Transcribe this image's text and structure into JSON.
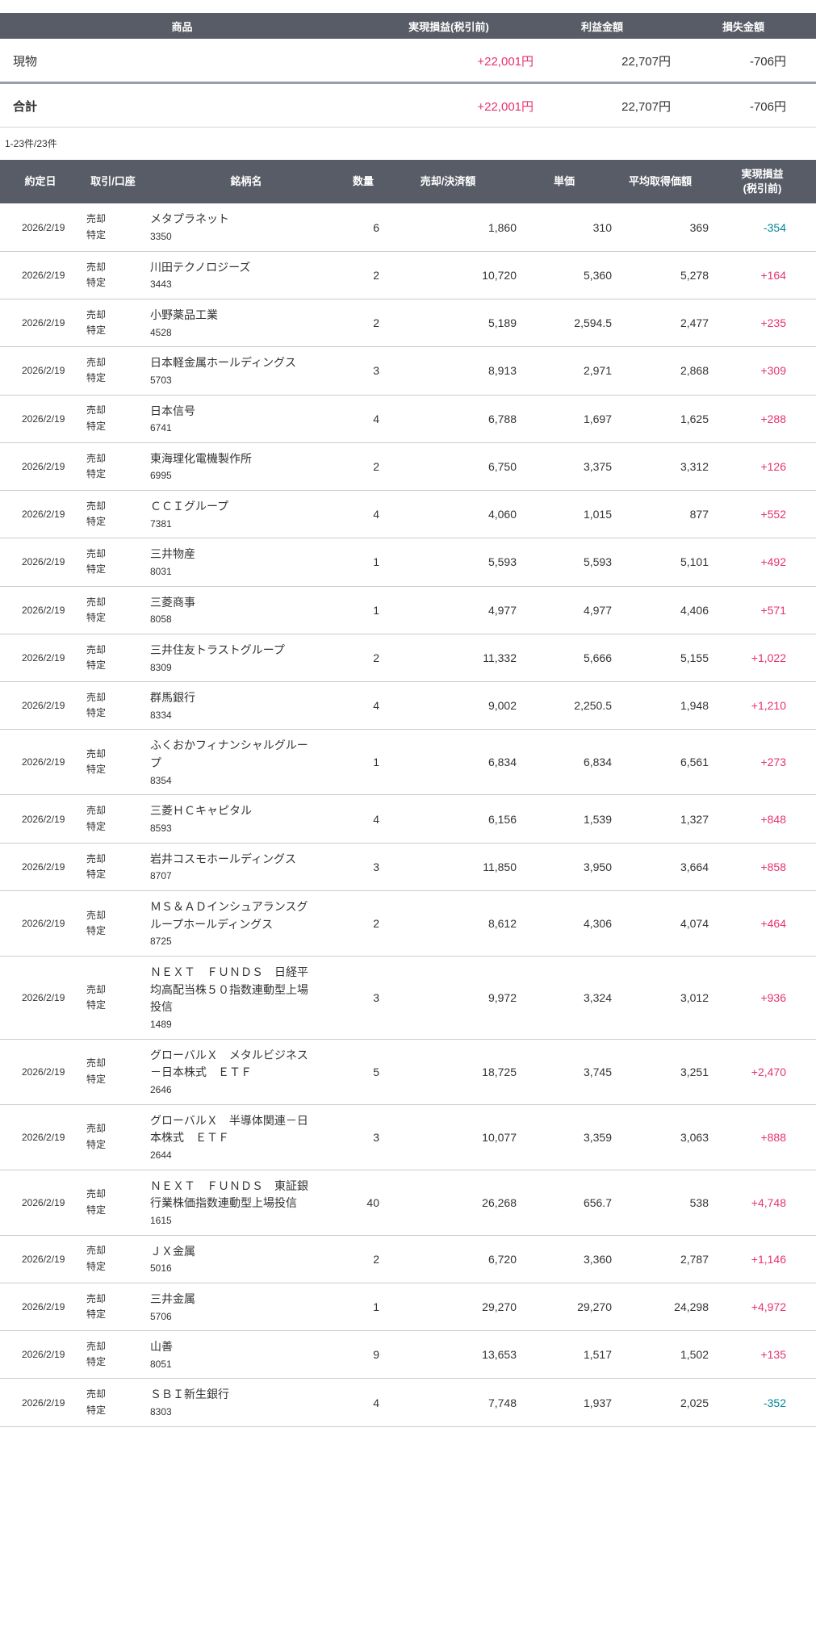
{
  "colors": {
    "header_bg": "#585c66",
    "positive_pl": "#e7336b",
    "negative_pl": "#00879b",
    "row_border": "#c9ccd0",
    "summary_thick_divider": "#9aa0aa",
    "text": "#333333"
  },
  "summary": {
    "columns": [
      "商品",
      "実現損益(税引前)",
      "利益金額",
      "損失金額"
    ],
    "rows": [
      {
        "product": "現物",
        "realized_pl": "+22,001円",
        "profit": "22,707円",
        "loss": "-706円"
      },
      {
        "product": "合計",
        "realized_pl": "+22,001円",
        "profit": "22,707円",
        "loss": "-706円"
      }
    ]
  },
  "pagination": {
    "label": "1-23件/23件"
  },
  "trades": {
    "columns": [
      "約定日",
      "取引/口座",
      "銘柄名",
      "数量",
      "売却/決済額",
      "単価",
      "平均取得価額",
      "実現損益(税引前)"
    ],
    "last_column_line1": "実現損益",
    "last_column_line2": "(税引前)",
    "rows": [
      {
        "date": "2026/2/19",
        "trade": "売却",
        "account": "特定",
        "name": "メタプラネット",
        "code": "3350",
        "qty": "6",
        "amount": "1,860",
        "price": "310",
        "avg_cost": "369",
        "pl": "-354"
      },
      {
        "date": "2026/2/19",
        "trade": "売却",
        "account": "特定",
        "name": "川田テクノロジーズ",
        "code": "3443",
        "qty": "2",
        "amount": "10,720",
        "price": "5,360",
        "avg_cost": "5,278",
        "pl": "+164"
      },
      {
        "date": "2026/2/19",
        "trade": "売却",
        "account": "特定",
        "name": "小野薬品工業",
        "code": "4528",
        "qty": "2",
        "amount": "5,189",
        "price": "2,594.5",
        "avg_cost": "2,477",
        "pl": "+235"
      },
      {
        "date": "2026/2/19",
        "trade": "売却",
        "account": "特定",
        "name": "日本軽金属ホールディングス",
        "code": "5703",
        "qty": "3",
        "amount": "8,913",
        "price": "2,971",
        "avg_cost": "2,868",
        "pl": "+309"
      },
      {
        "date": "2026/2/19",
        "trade": "売却",
        "account": "特定",
        "name": "日本信号",
        "code": "6741",
        "qty": "4",
        "amount": "6,788",
        "price": "1,697",
        "avg_cost": "1,625",
        "pl": "+288"
      },
      {
        "date": "2026/2/19",
        "trade": "売却",
        "account": "特定",
        "name": "東海理化電機製作所",
        "code": "6995",
        "qty": "2",
        "amount": "6,750",
        "price": "3,375",
        "avg_cost": "3,312",
        "pl": "+126"
      },
      {
        "date": "2026/2/19",
        "trade": "売却",
        "account": "特定",
        "name": "ＣＣＩグループ",
        "code": "7381",
        "qty": "4",
        "amount": "4,060",
        "price": "1,015",
        "avg_cost": "877",
        "pl": "+552"
      },
      {
        "date": "2026/2/19",
        "trade": "売却",
        "account": "特定",
        "name": "三井物産",
        "code": "8031",
        "qty": "1",
        "amount": "5,593",
        "price": "5,593",
        "avg_cost": "5,101",
        "pl": "+492"
      },
      {
        "date": "2026/2/19",
        "trade": "売却",
        "account": "特定",
        "name": "三菱商事",
        "code": "8058",
        "qty": "1",
        "amount": "4,977",
        "price": "4,977",
        "avg_cost": "4,406",
        "pl": "+571"
      },
      {
        "date": "2026/2/19",
        "trade": "売却",
        "account": "特定",
        "name": "三井住友トラストグループ",
        "code": "8309",
        "qty": "2",
        "amount": "11,332",
        "price": "5,666",
        "avg_cost": "5,155",
        "pl": "+1,022"
      },
      {
        "date": "2026/2/19",
        "trade": "売却",
        "account": "特定",
        "name": "群馬銀行",
        "code": "8334",
        "qty": "4",
        "amount": "9,002",
        "price": "2,250.5",
        "avg_cost": "1,948",
        "pl": "+1,210"
      },
      {
        "date": "2026/2/19",
        "trade": "売却",
        "account": "特定",
        "name": "ふくおかフィナンシャルグループ",
        "code": "8354",
        "qty": "1",
        "amount": "6,834",
        "price": "6,834",
        "avg_cost": "6,561",
        "pl": "+273"
      },
      {
        "date": "2026/2/19",
        "trade": "売却",
        "account": "特定",
        "name": "三菱ＨＣキャピタル",
        "code": "8593",
        "qty": "4",
        "amount": "6,156",
        "price": "1,539",
        "avg_cost": "1,327",
        "pl": "+848"
      },
      {
        "date": "2026/2/19",
        "trade": "売却",
        "account": "特定",
        "name": "岩井コスモホールディングス",
        "code": "8707",
        "qty": "3",
        "amount": "11,850",
        "price": "3,950",
        "avg_cost": "3,664",
        "pl": "+858"
      },
      {
        "date": "2026/2/19",
        "trade": "売却",
        "account": "特定",
        "name": "ＭＳ＆ＡＤインシュアランスグループホールディングス",
        "code": "8725",
        "qty": "2",
        "amount": "8,612",
        "price": "4,306",
        "avg_cost": "4,074",
        "pl": "+464"
      },
      {
        "date": "2026/2/19",
        "trade": "売却",
        "account": "特定",
        "name": "ＮＥＸＴ　ＦＵＮＤＳ　日経平均高配当株５０指数連動型上場投信",
        "code": "1489",
        "qty": "3",
        "amount": "9,972",
        "price": "3,324",
        "avg_cost": "3,012",
        "pl": "+936"
      },
      {
        "date": "2026/2/19",
        "trade": "売却",
        "account": "特定",
        "name": "グローバルＸ　メタルビジネス－日本株式　ＥＴＦ",
        "code": "2646",
        "qty": "5",
        "amount": "18,725",
        "price": "3,745",
        "avg_cost": "3,251",
        "pl": "+2,470"
      },
      {
        "date": "2026/2/19",
        "trade": "売却",
        "account": "特定",
        "name": "グローバルＸ　半導体関連－日本株式　ＥＴＦ",
        "code": "2644",
        "qty": "3",
        "amount": "10,077",
        "price": "3,359",
        "avg_cost": "3,063",
        "pl": "+888"
      },
      {
        "date": "2026/2/19",
        "trade": "売却",
        "account": "特定",
        "name": "ＮＥＸＴ　ＦＵＮＤＳ　東証銀行業株価指数連動型上場投信",
        "code": "1615",
        "qty": "40",
        "amount": "26,268",
        "price": "656.7",
        "avg_cost": "538",
        "pl": "+4,748"
      },
      {
        "date": "2026/2/19",
        "trade": "売却",
        "account": "特定",
        "name": "ＪＸ金属",
        "code": "5016",
        "qty": "2",
        "amount": "6,720",
        "price": "3,360",
        "avg_cost": "2,787",
        "pl": "+1,146"
      },
      {
        "date": "2026/2/19",
        "trade": "売却",
        "account": "特定",
        "name": "三井金属",
        "code": "5706",
        "qty": "1",
        "amount": "29,270",
        "price": "29,270",
        "avg_cost": "24,298",
        "pl": "+4,972"
      },
      {
        "date": "2026/2/19",
        "trade": "売却",
        "account": "特定",
        "name": "山善",
        "code": "8051",
        "qty": "9",
        "amount": "13,653",
        "price": "1,517",
        "avg_cost": "1,502",
        "pl": "+135"
      },
      {
        "date": "2026/2/19",
        "trade": "売却",
        "account": "特定",
        "name": "ＳＢＩ新生銀行",
        "code": "8303",
        "qty": "4",
        "amount": "7,748",
        "price": "1,937",
        "avg_cost": "2,025",
        "pl": "-352"
      }
    ]
  }
}
